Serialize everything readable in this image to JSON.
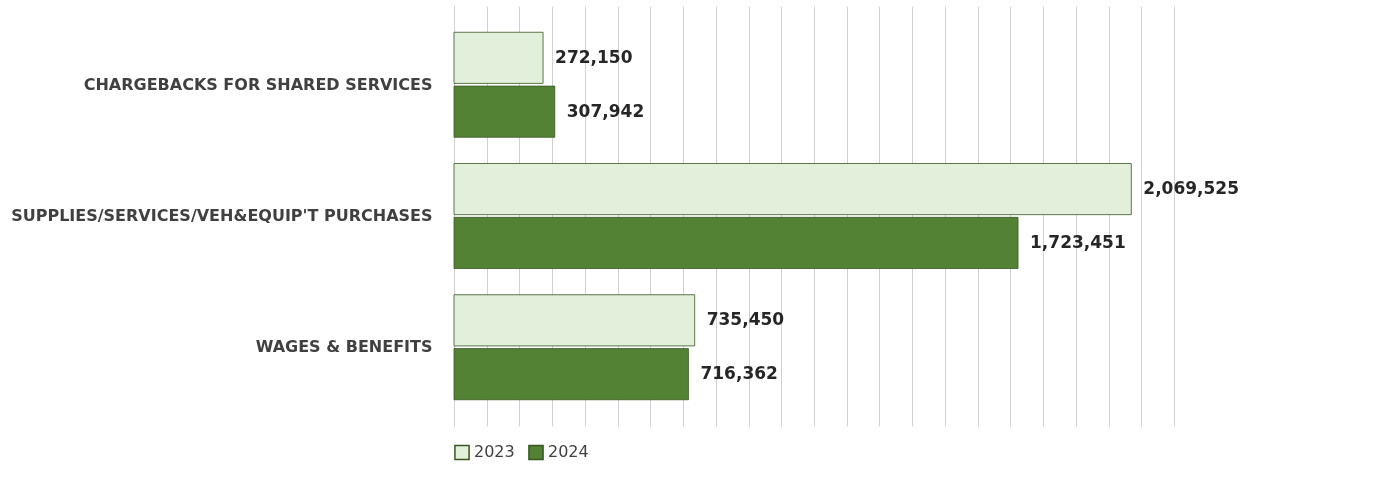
{
  "chart_data": {
    "type": "bar",
    "orientation": "horizontal",
    "categories": [
      "CHARGEBACKS FOR SHARED SERVICES",
      "SUPPLIES/SERVICES/VEH&EQUIP'T PURCHASES",
      "WAGES & BENEFITS"
    ],
    "series": [
      {
        "name": "2023",
        "color": "#e2efda",
        "values": [
          272150,
          2069525,
          735450
        ],
        "value_labels": [
          "272,150",
          "2,069,525",
          "735,450"
        ]
      },
      {
        "name": "2024",
        "color": "#548235",
        "values": [
          307942,
          1723451,
          716362
        ],
        "value_labels": [
          "307,942",
          "1,723,451",
          "716,362"
        ]
      }
    ],
    "tick_labels": "y",
    "grid": "x",
    "legend": "bottom"
  }
}
